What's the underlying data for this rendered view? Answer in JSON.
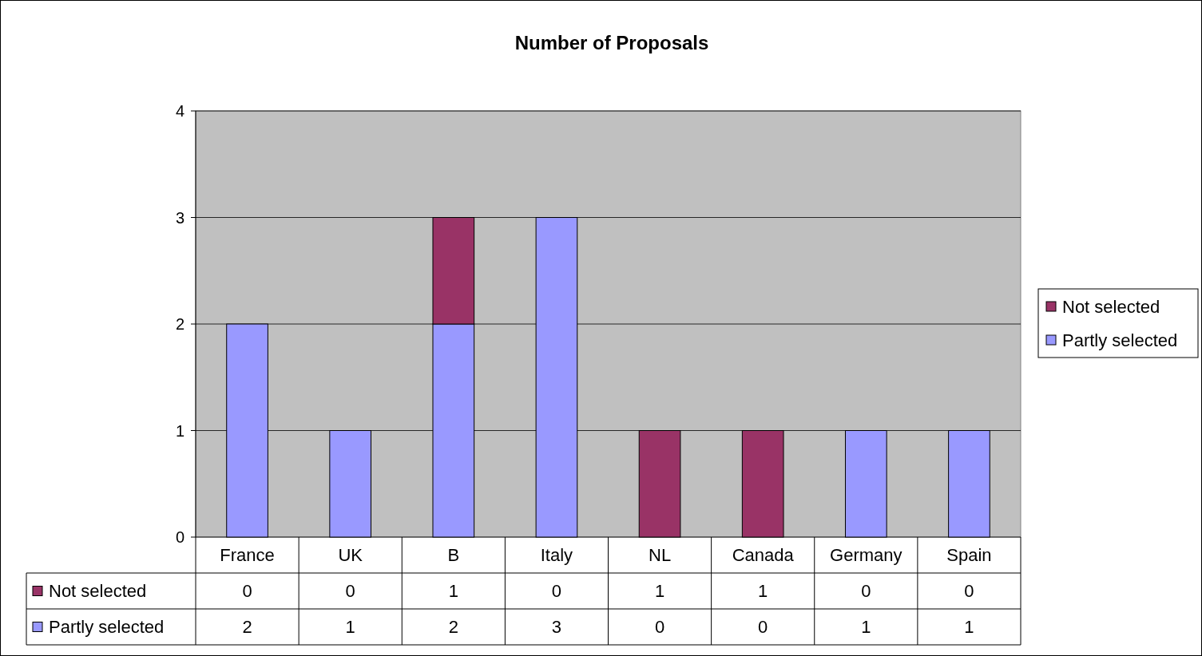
{
  "chart_data": {
    "type": "bar",
    "title": "Number of Proposals",
    "categories": [
      "France",
      "UK",
      "B",
      "Italy",
      "NL",
      "Canada",
      "Germany",
      "Spain"
    ],
    "stacked": true,
    "series": [
      {
        "name": "Partly selected",
        "color": "#9999ff",
        "values": [
          2,
          1,
          2,
          3,
          0,
          0,
          1,
          1
        ]
      },
      {
        "name": "Not selected",
        "color": "#993366",
        "values": [
          0,
          0,
          1,
          0,
          1,
          1,
          0,
          0
        ]
      }
    ],
    "ylim": [
      0,
      4
    ],
    "yticks": [
      0,
      1,
      2,
      3,
      4
    ],
    "grid": "y",
    "legend": "right",
    "data_labels": true
  }
}
